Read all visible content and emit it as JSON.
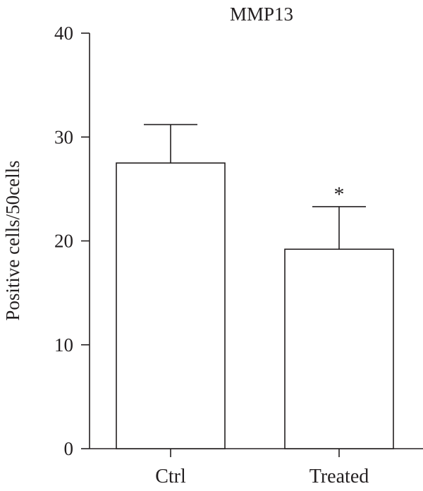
{
  "chart_data": {
    "type": "bar",
    "title": "MMP13",
    "xlabel": "",
    "ylabel": "Positive cells/50cells",
    "categories": [
      "Ctrl",
      "Treated"
    ],
    "values": [
      27.5,
      19.2
    ],
    "error_upper": [
      31.2,
      23.3
    ],
    "significance": [
      "",
      "*"
    ],
    "ylim": [
      0,
      40
    ],
    "yticks": [
      0,
      10,
      20,
      30,
      40
    ],
    "grid": false,
    "legend": "none",
    "colors": {
      "bar_fill": "#ffffff",
      "stroke": "#231f20"
    }
  }
}
